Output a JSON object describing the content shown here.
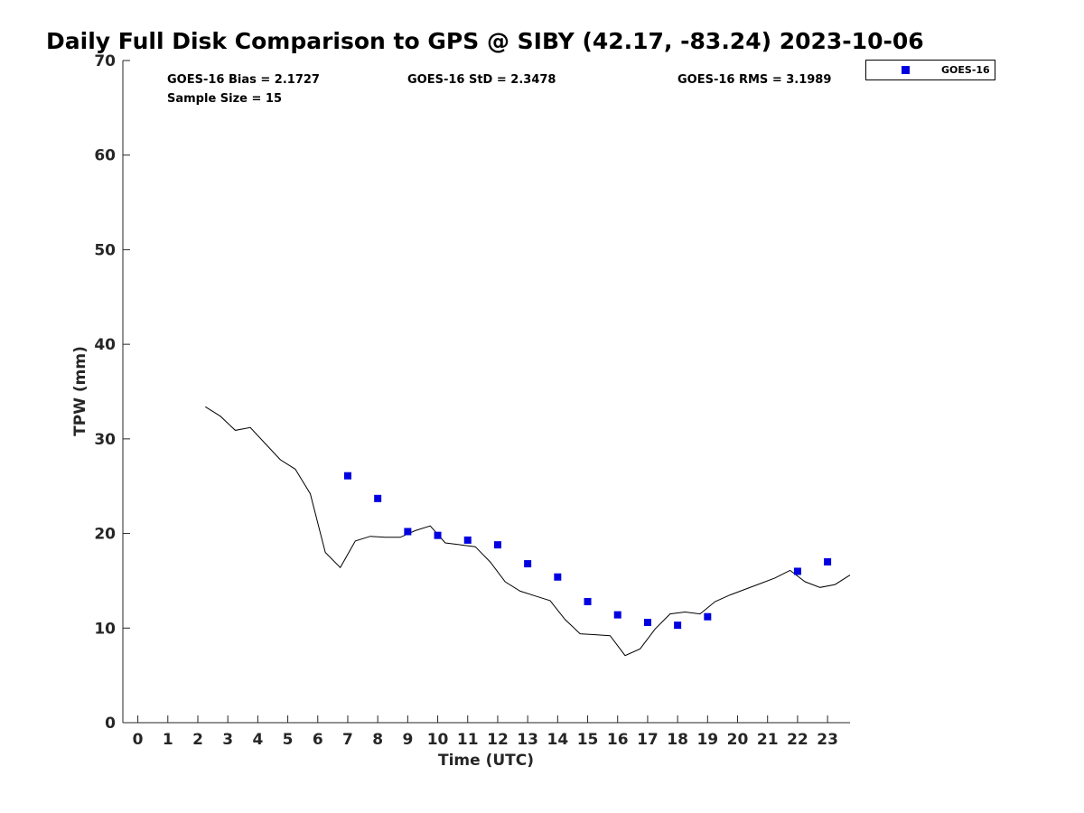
{
  "chart_data": {
    "type": "scatter",
    "title": "Daily Full Disk Comparison to GPS @ SIBY (42.17, -83.24) 2023-10-06",
    "xlabel": "Time (UTC)",
    "ylabel": "TPW (mm)",
    "xlim": [
      -0.5,
      23.75
    ],
    "ylim": [
      0,
      70
    ],
    "xticks": [
      0,
      1,
      2,
      3,
      4,
      5,
      6,
      7,
      8,
      9,
      10,
      11,
      12,
      13,
      14,
      15,
      16,
      17,
      18,
      19,
      20,
      21,
      22,
      23
    ],
    "yticks": [
      0,
      10,
      20,
      30,
      40,
      50,
      60,
      70
    ],
    "grid": false,
    "legend_position": "top-right, outside plot",
    "stats": {
      "bias": "GOES-16 Bias = 2.1727",
      "std": "GOES-16 StD = 2.3478",
      "rms": "GOES-16 RMS = 3.1989",
      "sample_size": "Sample Size = 15"
    },
    "series": [
      {
        "name": "GPS",
        "kind": "line",
        "color": "#000000",
        "x": [
          2.25,
          2.75,
          3.25,
          3.75,
          4.25,
          4.75,
          5.25,
          5.75,
          6.25,
          6.75,
          7.25,
          7.75,
          8.25,
          8.75,
          9.25,
          9.75,
          10.25,
          10.75,
          11.25,
          11.75,
          12.25,
          12.75,
          13.25,
          13.75,
          14.25,
          14.75,
          15.25,
          15.75,
          16.25,
          16.75,
          17.25,
          17.75,
          18.25,
          18.75,
          19.25,
          19.75,
          20.25,
          20.75,
          21.25,
          21.75,
          22.25,
          22.75,
          23.25,
          23.75
        ],
        "y": [
          33.4,
          32.4,
          30.9,
          31.2,
          29.5,
          27.8,
          26.8,
          24.2,
          18.0,
          16.4,
          19.2,
          19.7,
          19.6,
          19.6,
          20.3,
          20.8,
          19.0,
          18.8,
          18.6,
          17.0,
          14.9,
          13.9,
          13.4,
          12.9,
          10.9,
          9.4,
          9.3,
          9.2,
          7.1,
          7.8,
          9.9,
          11.5,
          11.7,
          11.5,
          12.8,
          13.5,
          14.1,
          14.7,
          15.3,
          16.1,
          14.9,
          14.3,
          14.6,
          15.6
        ]
      },
      {
        "name": "GOES-16",
        "kind": "scatter",
        "color": "#0000e0",
        "x": [
          7,
          8,
          9,
          10,
          11,
          12,
          13,
          14,
          15,
          16,
          17,
          18,
          19,
          22,
          23
        ],
        "y": [
          26.1,
          23.7,
          20.2,
          19.8,
          19.3,
          18.8,
          16.8,
          15.4,
          12.8,
          11.4,
          10.6,
          10.3,
          11.2,
          16.0,
          17.0
        ]
      }
    ],
    "legend_entries": [
      "GOES-16"
    ]
  }
}
